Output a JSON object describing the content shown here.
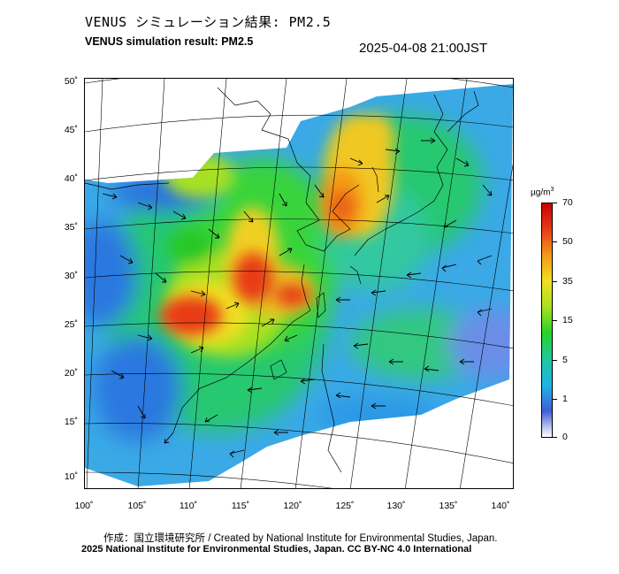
{
  "title_jp": "VENUS シミュレーション結果: PM2.5",
  "title_en": "VENUS simulation result: PM2.5",
  "timestamp": "2025-04-08 21:00JST",
  "latitude_ticks": [
    "50˚",
    "45˚",
    "40˚",
    "35˚",
    "30˚",
    "25˚",
    "20˚",
    "15˚",
    "10˚"
  ],
  "longitude_ticks": [
    "100˚",
    "105˚",
    "110˚",
    "115˚",
    "120˚",
    "125˚",
    "130˚",
    "135˚",
    "140˚"
  ],
  "colorbar": {
    "unit": "µg/m",
    "unit_sup": "3",
    "ticks": [
      "70",
      "50",
      "35",
      "15",
      "5",
      "1",
      "0"
    ],
    "colors": [
      "#ffffff",
      "#3f5fd8",
      "#1fb4e6",
      "#20c8a0",
      "#28d22a",
      "#a8e020",
      "#f0e020",
      "#f59a18",
      "#e83a18",
      "#cc0000"
    ]
  },
  "credit": "作成：国立環境研究所 / Created by National Institute for Environmental Studies, Japan.",
  "license": "2025 National Institute for Environmental Studies, Japan. CC BY-NC 4.0 International"
}
